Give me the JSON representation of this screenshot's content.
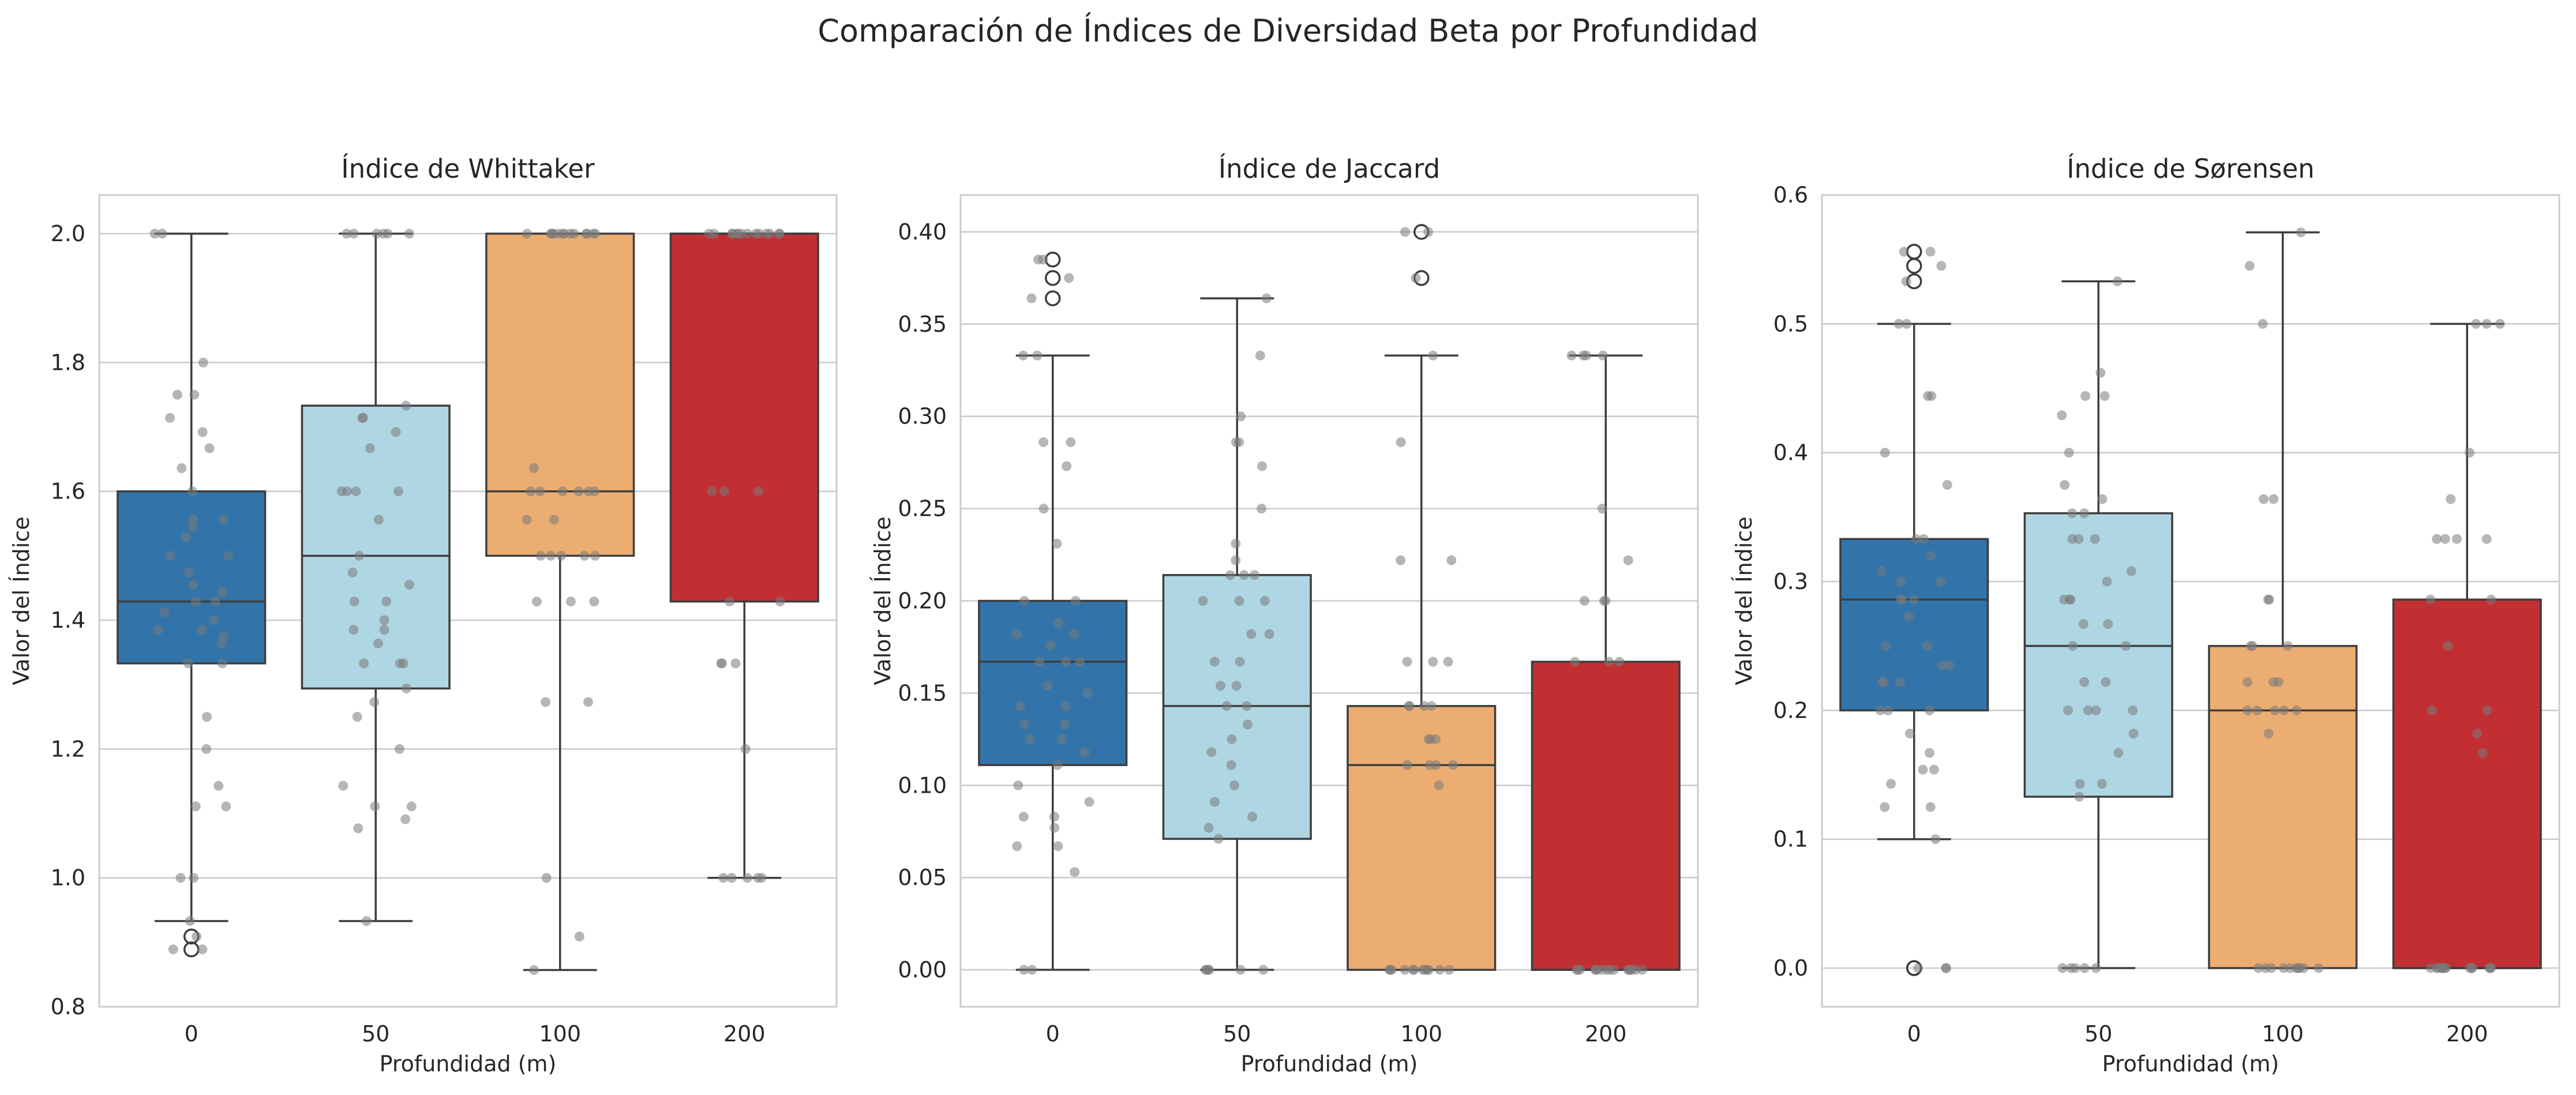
{
  "figure_title": "Comparación de Índices de Diversidad Beta por Profundidad",
  "colors": {
    "0": "#3274a9",
    "50": "#afd6e3",
    "100": "#ecad72",
    "200": "#c22f33",
    "grid": "#cccccc",
    "spine": "#cccccc",
    "box_edge": "#3d3d3d",
    "jitter": "#7a7a7a"
  },
  "chart_data": [
    {
      "type": "box",
      "title": "Índice de Whittaker",
      "xlabel": "Profundidad (m)",
      "ylabel": "Valor del Índice",
      "categories": [
        "0",
        "50",
        "100",
        "200"
      ],
      "ylim": [
        0.8,
        2.06
      ],
      "yticks": [
        0.8,
        1.0,
        1.2,
        1.4,
        1.6,
        1.8,
        2.0
      ],
      "ytick_labels": [
        "0.8",
        "1.0",
        "1.2",
        "1.4",
        "1.6",
        "1.8",
        "2.0"
      ],
      "grid": true,
      "boxes": [
        {
          "category": "0",
          "whislo": 0.933,
          "q1": 1.333,
          "med": 1.429,
          "q3": 1.6,
          "whishi": 2.0,
          "fliers": [
            0.909,
            0.889
          ]
        },
        {
          "category": "50",
          "whislo": 0.933,
          "q1": 1.294,
          "med": 1.5,
          "q3": 1.733,
          "whishi": 2.0,
          "fliers": []
        },
        {
          "category": "100",
          "whislo": 0.857,
          "q1": 1.5,
          "med": 1.6,
          "q3": 2.0,
          "whishi": 2.0,
          "fliers": []
        },
        {
          "category": "200",
          "whislo": 1.0,
          "q1": 1.429,
          "med": 2.0,
          "q3": 2.0,
          "whishi": 2.0,
          "fliers": []
        }
      ],
      "points": [
        [
          2.0,
          2.0,
          1.8,
          1.75,
          1.75,
          1.714,
          1.692,
          1.667,
          1.636,
          1.6,
          1.556,
          1.556,
          1.545,
          1.529,
          1.5,
          1.5,
          1.474,
          1.455,
          1.444,
          1.429,
          1.429,
          1.412,
          1.4,
          1.385,
          1.385,
          1.375,
          1.364,
          1.333,
          1.333,
          1.25,
          1.2,
          1.143,
          1.111,
          1.111,
          1.0,
          1.0,
          0.933,
          0.909,
          0.889,
          0.889
        ],
        [
          2.0,
          2.0,
          2.0,
          2.0,
          2.0,
          2.0,
          1.733,
          1.714,
          1.714,
          1.692,
          1.667,
          1.6,
          1.6,
          1.6,
          1.6,
          1.556,
          1.5,
          1.474,
          1.455,
          1.429,
          1.429,
          1.4,
          1.385,
          1.385,
          1.364,
          1.333,
          1.333,
          1.333,
          1.294,
          1.273,
          1.25,
          1.2,
          1.143,
          1.111,
          1.111,
          1.091,
          1.077,
          0.933
        ],
        [
          2.0,
          2.0,
          2.0,
          2.0,
          2.0,
          2.0,
          2.0,
          2.0,
          2.0,
          2.0,
          2.0,
          2.0,
          2.0,
          1.636,
          1.6,
          1.6,
          1.6,
          1.6,
          1.6,
          1.6,
          1.556,
          1.556,
          1.5,
          1.5,
          1.5,
          1.5,
          1.5,
          1.429,
          1.429,
          1.429,
          1.273,
          1.273,
          1.0,
          0.909,
          0.857
        ],
        [
          2.0,
          2.0,
          2.0,
          2.0,
          2.0,
          2.0,
          2.0,
          2.0,
          2.0,
          2.0,
          2.0,
          2.0,
          2.0,
          2.0,
          1.6,
          1.6,
          1.6,
          1.429,
          1.429,
          1.333,
          1.333,
          1.333,
          1.2,
          1.0,
          1.0,
          1.0,
          1.0,
          1.0
        ]
      ]
    },
    {
      "type": "box",
      "title": "Índice de Jaccard",
      "xlabel": "Profundidad (m)",
      "ylabel": "Valor del Índice",
      "categories": [
        "0",
        "50",
        "100",
        "200"
      ],
      "ylim": [
        -0.02,
        0.42
      ],
      "yticks": [
        0.0,
        0.05,
        0.1,
        0.15,
        0.2,
        0.25,
        0.3,
        0.35,
        0.4
      ],
      "ytick_labels": [
        "0.00",
        "0.05",
        "0.10",
        "0.15",
        "0.20",
        "0.25",
        "0.30",
        "0.35",
        "0.40"
      ],
      "grid": true,
      "boxes": [
        {
          "category": "0",
          "whislo": 0.0,
          "q1": 0.111,
          "med": 0.167,
          "q3": 0.2,
          "whishi": 0.333,
          "fliers": [
            0.385,
            0.375,
            0.364
          ]
        },
        {
          "category": "50",
          "whislo": 0.0,
          "q1": 0.071,
          "med": 0.143,
          "q3": 0.214,
          "whishi": 0.364,
          "fliers": []
        },
        {
          "category": "100",
          "whislo": 0.0,
          "q1": 0.0,
          "med": 0.111,
          "q3": 0.143,
          "whishi": 0.333,
          "fliers": [
            0.4,
            0.375
          ]
        },
        {
          "category": "200",
          "whislo": 0.0,
          "q1": 0.0,
          "med": 0.0,
          "q3": 0.167,
          "whishi": 0.333,
          "fliers": []
        }
      ],
      "points": [
        [
          0.385,
          0.385,
          0.375,
          0.364,
          0.333,
          0.333,
          0.286,
          0.286,
          0.273,
          0.25,
          0.231,
          0.2,
          0.2,
          0.188,
          0.182,
          0.182,
          0.176,
          0.167,
          0.167,
          0.167,
          0.154,
          0.15,
          0.143,
          0.143,
          0.133,
          0.133,
          0.125,
          0.125,
          0.118,
          0.111,
          0.1,
          0.091,
          0.083,
          0.083,
          0.077,
          0.067,
          0.067,
          0.053,
          0.0,
          0.0
        ],
        [
          0.364,
          0.333,
          0.3,
          0.286,
          0.286,
          0.273,
          0.25,
          0.231,
          0.222,
          0.214,
          0.214,
          0.214,
          0.2,
          0.2,
          0.2,
          0.182,
          0.182,
          0.167,
          0.167,
          0.154,
          0.154,
          0.143,
          0.143,
          0.133,
          0.125,
          0.118,
          0.111,
          0.1,
          0.091,
          0.083,
          0.077,
          0.071,
          0.0,
          0.0,
          0.0,
          0.0,
          0.0,
          0.0
        ],
        [
          0.4,
          0.4,
          0.375,
          0.333,
          0.286,
          0.222,
          0.222,
          0.167,
          0.167,
          0.167,
          0.143,
          0.143,
          0.143,
          0.143,
          0.125,
          0.125,
          0.125,
          0.111,
          0.111,
          0.111,
          0.111,
          0.1,
          0.0,
          0.0,
          0.0,
          0.0,
          0.0,
          0.0,
          0.0,
          0.0,
          0.0,
          0.0,
          0.0,
          0.0
        ],
        [
          0.333,
          0.333,
          0.333,
          0.333,
          0.25,
          0.222,
          0.2,
          0.2,
          0.2,
          0.167,
          0.167,
          0.167,
          0.0,
          0.0,
          0.0,
          0.0,
          0.0,
          0.0,
          0.0,
          0.0,
          0.0,
          0.0,
          0.0,
          0.0,
          0.0,
          0.0,
          0.0,
          0.0
        ]
      ]
    },
    {
      "type": "box",
      "title": "Índice de Sørensen",
      "xlabel": "Profundidad (m)",
      "ylabel": "Valor del Índice",
      "categories": [
        "0",
        "50",
        "100",
        "200"
      ],
      "ylim": [
        -0.03,
        0.6
      ],
      "yticks": [
        0.0,
        0.1,
        0.2,
        0.3,
        0.4,
        0.5,
        0.6
      ],
      "ytick_labels": [
        "0.0",
        "0.1",
        "0.2",
        "0.3",
        "0.4",
        "0.5",
        "0.6"
      ],
      "grid": true,
      "boxes": [
        {
          "category": "0",
          "whislo": 0.1,
          "q1": 0.2,
          "med": 0.286,
          "q3": 0.333,
          "whishi": 0.5,
          "fliers": [
            0.556,
            0.545,
            0.533,
            0.0,
            0.0
          ]
        },
        {
          "category": "50",
          "whislo": 0.0,
          "q1": 0.133,
          "med": 0.25,
          "q3": 0.353,
          "whishi": 0.533,
          "fliers": []
        },
        {
          "category": "100",
          "whislo": 0.0,
          "q1": 0.0,
          "med": 0.2,
          "q3": 0.25,
          "whishi": 0.571,
          "fliers": []
        },
        {
          "category": "200",
          "whislo": 0.0,
          "q1": 0.0,
          "med": 0.0,
          "q3": 0.286,
          "whishi": 0.5,
          "fliers": []
        }
      ],
      "points": [
        [
          0.556,
          0.556,
          0.545,
          0.533,
          0.5,
          0.5,
          0.444,
          0.444,
          0.4,
          0.375,
          0.333,
          0.333,
          0.32,
          0.308,
          0.3,
          0.3,
          0.286,
          0.286,
          0.286,
          0.273,
          0.25,
          0.25,
          0.235,
          0.235,
          0.222,
          0.222,
          0.222,
          0.2,
          0.2,
          0.2,
          0.182,
          0.167,
          0.154,
          0.154,
          0.143,
          0.125,
          0.125,
          0.1,
          0.0,
          0.0,
          0.0
        ],
        [
          0.533,
          0.462,
          0.444,
          0.444,
          0.429,
          0.4,
          0.375,
          0.364,
          0.353,
          0.353,
          0.333,
          0.333,
          0.333,
          0.308,
          0.3,
          0.286,
          0.286,
          0.286,
          0.267,
          0.267,
          0.25,
          0.25,
          0.222,
          0.222,
          0.2,
          0.2,
          0.2,
          0.2,
          0.182,
          0.167,
          0.143,
          0.143,
          0.133,
          0.0,
          0.0,
          0.0,
          0.0,
          0.0
        ],
        [
          0.571,
          0.545,
          0.5,
          0.364,
          0.364,
          0.286,
          0.286,
          0.25,
          0.25,
          0.25,
          0.222,
          0.222,
          0.222,
          0.2,
          0.2,
          0.2,
          0.2,
          0.2,
          0.182,
          0.0,
          0.0,
          0.0,
          0.0,
          0.0,
          0.0,
          0.0,
          0.0,
          0.0,
          0.0
        ],
        [
          0.5,
          0.5,
          0.5,
          0.4,
          0.364,
          0.333,
          0.333,
          0.333,
          0.333,
          0.286,
          0.286,
          0.25,
          0.2,
          0.2,
          0.182,
          0.167,
          0.0,
          0.0,
          0.0,
          0.0,
          0.0,
          0.0,
          0.0,
          0.0,
          0.0,
          0.0,
          0.0,
          0.0,
          0.0,
          0.0
        ]
      ]
    }
  ]
}
